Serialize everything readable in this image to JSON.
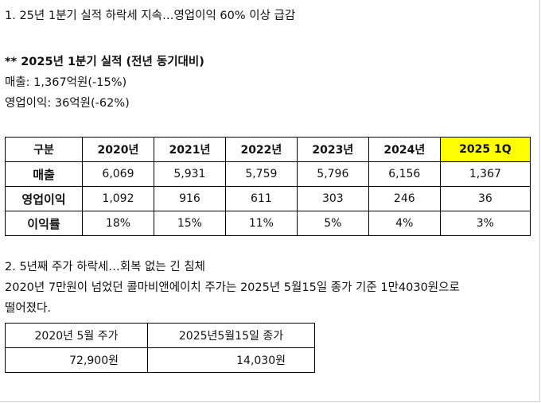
{
  "section1": {
    "heading": "1. 25년 1분기 실적 하락세 지속…영업이익 60% 이상 급감",
    "subheading": "** 2025년 1분기 실적 (전년 동기대비)",
    "revenue_line": "매출: 1,367억원(-15%)",
    "op_income_line": "영업이익: 36억원(-62%)"
  },
  "table": {
    "columns": [
      "구분",
      "2020년",
      "2021년",
      "2022년",
      "2023년",
      "2024년",
      "2025 1Q"
    ],
    "rows": [
      {
        "label": "매출",
        "values": [
          "6,069",
          "5,931",
          "5,759",
          "5,796",
          "6,156",
          "1,367"
        ]
      },
      {
        "label": "영업이익",
        "values": [
          "1,092",
          "916",
          "611",
          "303",
          "246",
          "36"
        ]
      },
      {
        "label": "이익률",
        "values": [
          "18%",
          "15%",
          "11%",
          "5%",
          "4%",
          "3%"
        ]
      }
    ],
    "highlight_color": "#ffff00"
  },
  "section2": {
    "heading": "2. 5년째 주가 하락세…회복 없는 긴 침체",
    "body_line1": "2020년 7만원이 넘었던 콜마비앤에이치 주가는 2025년 5월15일 종가 기준 1만4030원으로",
    "body_line2": "떨어졌다."
  },
  "price_table": {
    "headers": [
      "2020년 5월 주가",
      "2025년5월15일 종가"
    ],
    "values": [
      "72,900원",
      "14,030원"
    ]
  }
}
